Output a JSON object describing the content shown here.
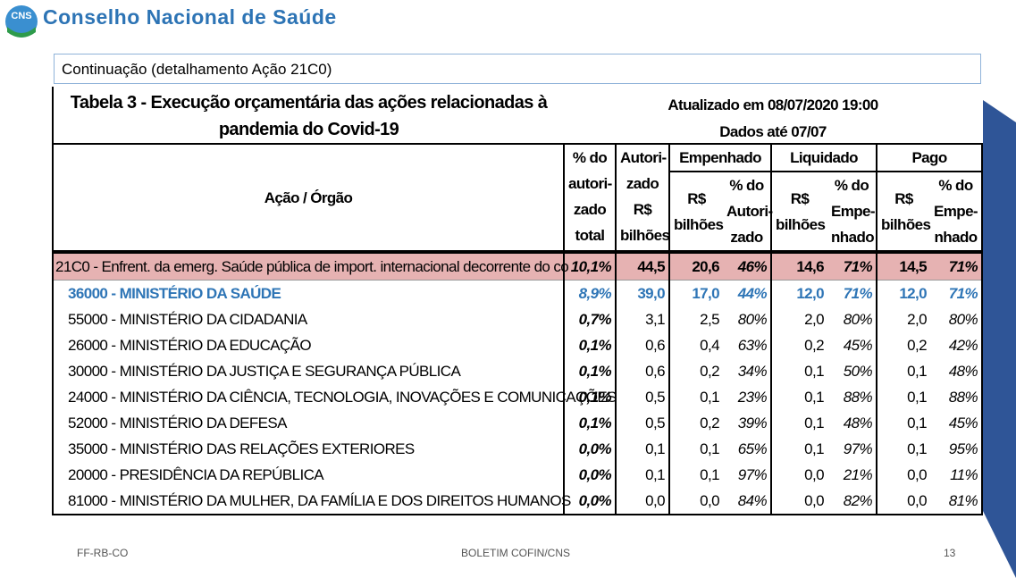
{
  "header": {
    "logo": "CNS",
    "title": "Conselho Nacional de Saúde"
  },
  "subtitle": "Continuação (detalhamento Ação 21C0)",
  "table": {
    "title": "Tabela 3 - Execução orçamentária das ações relacionadas à pandemia do Covid-19",
    "updated": "Atualizado em 08/07/2020 19:00",
    "data_until": "Dados até 07/07",
    "columns": {
      "action": "Ação / Órgão",
      "pct_total": [
        "% do",
        "autori-",
        "zado",
        "total"
      ],
      "authorized": [
        "Autori-",
        "zado",
        "R$",
        "bilhões"
      ],
      "groups": [
        {
          "name": "Empenhado",
          "sub": [
            [
              "R$",
              "bilhões"
            ],
            [
              "% do",
              "Autori-",
              "zado"
            ]
          ]
        },
        {
          "name": "Liquidado",
          "sub": [
            [
              "R$",
              "bilhões"
            ],
            [
              "% do",
              "Empe-",
              "nhado"
            ]
          ]
        },
        {
          "name": "Pago",
          "sub": [
            [
              "R$",
              "bilhões"
            ],
            [
              "% do",
              "Empe-",
              "nhado"
            ]
          ]
        }
      ]
    },
    "rows": [
      [
        "21C0 - Enfrent. da emerg. Saúde pública de import. internacional decorrente do co",
        "10,1%",
        "44,5",
        "20,6",
        "46%",
        "14,6",
        "71%",
        "14,5",
        "71%"
      ],
      [
        "36000 - MINISTÉRIO DA SAÚDE",
        "8,9%",
        "39,0",
        "17,0",
        "44%",
        "12,0",
        "71%",
        "12,0",
        "71%"
      ],
      [
        "55000 - MINISTÉRIO DA CIDADANIA",
        "0,7%",
        "3,1",
        "2,5",
        "80%",
        "2,0",
        "80%",
        "2,0",
        "80%"
      ],
      [
        "26000 - MINISTÉRIO DA EDUCAÇÃO",
        "0,1%",
        "0,6",
        "0,4",
        "63%",
        "0,2",
        "45%",
        "0,2",
        "42%"
      ],
      [
        "30000 - MINISTÉRIO DA JUSTIÇA E SEGURANÇA PÚBLICA",
        "0,1%",
        "0,6",
        "0,2",
        "34%",
        "0,1",
        "50%",
        "0,1",
        "48%"
      ],
      [
        "24000 - MINISTÉRIO DA CIÊNCIA, TECNOLOGIA, INOVAÇÕES E COMUNICAÇÕES",
        "0,1%",
        "0,5",
        "0,1",
        "23%",
        "0,1",
        "88%",
        "0,1",
        "88%"
      ],
      [
        "52000 - MINISTÉRIO DA DEFESA",
        "0,1%",
        "0,5",
        "0,2",
        "39%",
        "0,1",
        "48%",
        "0,1",
        "45%"
      ],
      [
        "35000 - MINISTÉRIO DAS RELAÇÕES EXTERIORES",
        "0,0%",
        "0,1",
        "0,1",
        "65%",
        "0,1",
        "97%",
        "0,1",
        "95%"
      ],
      [
        "20000 - PRESIDÊNCIA DA REPÚBLICA",
        "0,0%",
        "0,1",
        "0,1",
        "97%",
        "0,0",
        "21%",
        "0,0",
        "11%"
      ],
      [
        "81000 - MINISTÉRIO DA MULHER, DA FAMÍLIA E DOS DIREITOS HUMANOS",
        "0,0%",
        "0,0",
        "0,0",
        "84%",
        "0,0",
        "82%",
        "0,0",
        "81%"
      ]
    ]
  },
  "footer": {
    "left": "FF-RB-CO",
    "center": "BOLETIM COFIN/CNS",
    "page": "13"
  }
}
